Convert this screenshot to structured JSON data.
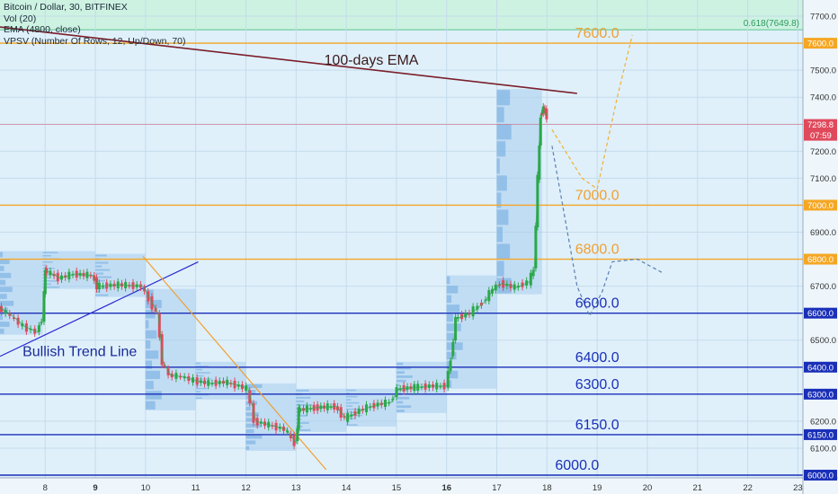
{
  "header": {
    "symbol": "Bitcoin / Dollar, 30, BITFINEX",
    "vol": "Vol (20)",
    "ema": "EMA (4800, close)",
    "vpsv": "VPSV (Number Of Rows, 12, Up/Down, 70)"
  },
  "colors": {
    "background": "#dff0fb",
    "fib_zone": "#c8f2dc",
    "orange_level": "#f5a623",
    "blue_level": "#1a2fb8",
    "ema": "#7b1f2a",
    "trend_bull": "#2a2ad0",
    "trend_bear": "#f0a030",
    "candle_up": "#2ba84a",
    "candle_down": "#e0495b",
    "price_tag": "#e0495b"
  },
  "chart_data": {
    "type": "candlestick",
    "title": "Bitcoin / Dollar, 30, BITFINEX",
    "ylim": [
      5990,
      7760
    ],
    "xlim": [
      7.1,
      23.1
    ],
    "y_ticks": [
      6000,
      6100,
      6200,
      6300,
      6400,
      6500,
      6600,
      6700,
      6800,
      6900,
      7000,
      7100,
      7200,
      7300,
      7400,
      7500,
      7600,
      7700
    ],
    "x_ticks": [
      "8",
      "9",
      "10",
      "11",
      "12",
      "13",
      "14",
      "15",
      "16",
      "17",
      "18",
      "19",
      "20",
      "21",
      "22",
      "23"
    ],
    "x_tick_values": [
      8,
      9,
      10,
      11,
      12,
      13,
      14,
      15,
      16,
      17,
      18,
      19,
      20,
      21,
      22,
      23
    ],
    "bold_ticks": [
      "9",
      "16"
    ],
    "grid": true,
    "price_path": [
      [
        7.1,
        6620
      ],
      [
        7.35,
        6590
      ],
      [
        7.6,
        6550
      ],
      [
        7.85,
        6530
      ],
      [
        7.95,
        6580
      ],
      [
        8.0,
        6760
      ],
      [
        8.3,
        6730
      ],
      [
        8.6,
        6745
      ],
      [
        8.95,
        6740
      ],
      [
        9.05,
        6700
      ],
      [
        9.5,
        6705
      ],
      [
        9.95,
        6700
      ],
      [
        10.1,
        6650
      ],
      [
        10.25,
        6600
      ],
      [
        10.35,
        6420
      ],
      [
        10.5,
        6370
      ],
      [
        10.75,
        6365
      ],
      [
        11.0,
        6350
      ],
      [
        11.3,
        6340
      ],
      [
        11.6,
        6345
      ],
      [
        11.9,
        6330
      ],
      [
        12.05,
        6320
      ],
      [
        12.2,
        6200
      ],
      [
        12.5,
        6185
      ],
      [
        12.8,
        6170
      ],
      [
        13.0,
        6120
      ],
      [
        13.05,
        6240
      ],
      [
        13.4,
        6250
      ],
      [
        13.8,
        6255
      ],
      [
        14.0,
        6210
      ],
      [
        14.3,
        6240
      ],
      [
        14.6,
        6260
      ],
      [
        14.9,
        6270
      ],
      [
        15.05,
        6320
      ],
      [
        15.4,
        6325
      ],
      [
        15.7,
        6330
      ],
      [
        16.0,
        6330
      ],
      [
        16.1,
        6430
      ],
      [
        16.2,
        6580
      ],
      [
        16.5,
        6600
      ],
      [
        16.75,
        6640
      ],
      [
        16.95,
        6690
      ],
      [
        17.1,
        6710
      ],
      [
        17.4,
        6695
      ],
      [
        17.65,
        6715
      ],
      [
        17.75,
        6760
      ],
      [
        17.82,
        7100
      ],
      [
        17.87,
        7330
      ],
      [
        17.93,
        7360
      ],
      [
        18.0,
        7330
      ]
    ],
    "current_price": 7298.8,
    "current_price_label": "7298.8",
    "countdown_label": "07:59",
    "fib_label": "0.618(7649.8)",
    "fib_level": 7649.8,
    "levels": [
      {
        "value": 7600,
        "label": "7600.0",
        "tag": "7600.0",
        "color": "orange",
        "label_x": 19.0
      },
      {
        "value": 7000,
        "label": "7000.0",
        "tag": "7000.0",
        "color": "orange",
        "label_x": 19.0
      },
      {
        "value": 6800,
        "label": "6800.0",
        "tag": "6800.0",
        "color": "orange",
        "label_x": 19.0
      },
      {
        "value": 6600,
        "label": "6600.0",
        "tag": "6600.0",
        "color": "blue",
        "label_x": 19.0
      },
      {
        "value": 6400,
        "label": "6400.0",
        "tag": "6400.0",
        "color": "blue",
        "label_x": 19.0
      },
      {
        "value": 6300,
        "label": "6300.0",
        "tag": "6300.0",
        "color": "blue",
        "label_x": 19.0
      },
      {
        "value": 6150,
        "label": "6150.0",
        "tag": "6150.0",
        "color": "blue",
        "label_x": 19.0
      },
      {
        "value": 6000,
        "label": "6000.0",
        "tag": "6000.0",
        "color": "blue",
        "label_x": 18.6
      }
    ],
    "ema_line": {
      "label": "100-days EMA",
      "points": [
        [
          7.1,
          7660
        ],
        [
          18.6,
          7414
        ]
      ],
      "label_at": [
        14.5,
        7520
      ]
    },
    "trend_lines": [
      {
        "label": "Bullish Trend Line",
        "points": [
          [
            7.1,
            6440
          ],
          [
            11.05,
            6790
          ]
        ],
        "label_at": [
          7.55,
          6440
        ]
      },
      {
        "label": "",
        "points": [
          [
            9.95,
            6810
          ],
          [
            13.6,
            6020
          ]
        ]
      }
    ],
    "volume_profiles": [
      {
        "x0": 7.1,
        "x1": 7.95,
        "y0": 6520,
        "y1": 6830
      },
      {
        "x0": 7.95,
        "x1": 9.0,
        "y0": 6690,
        "y1": 6830
      },
      {
        "x0": 9.0,
        "x1": 10.0,
        "y0": 6660,
        "y1": 6820
      },
      {
        "x0": 10.0,
        "x1": 11.0,
        "y0": 6240,
        "y1": 6690
      },
      {
        "x0": 11.0,
        "x1": 12.0,
        "y0": 6280,
        "y1": 6420
      },
      {
        "x0": 12.0,
        "x1": 13.0,
        "y0": 6090,
        "y1": 6340
      },
      {
        "x0": 13.0,
        "x1": 14.0,
        "y0": 6160,
        "y1": 6320
      },
      {
        "x0": 14.0,
        "x1": 15.0,
        "y0": 6180,
        "y1": 6320
      },
      {
        "x0": 15.0,
        "x1": 16.0,
        "y0": 6230,
        "y1": 6420
      },
      {
        "x0": 16.0,
        "x1": 17.0,
        "y0": 6320,
        "y1": 6740
      },
      {
        "x0": 17.0,
        "x1": 17.9,
        "y0": 6670,
        "y1": 7430
      }
    ],
    "projections": [
      {
        "points": [
          [
            18.1,
            7280
          ],
          [
            18.7,
            7100
          ],
          [
            19.0,
            7060
          ],
          [
            19.4,
            7400
          ],
          [
            19.7,
            7630
          ]
        ],
        "color": "orange"
      },
      {
        "points": [
          [
            18.1,
            7220
          ],
          [
            18.35,
            6960
          ],
          [
            18.6,
            6700
          ],
          [
            18.85,
            6590
          ],
          [
            19.1,
            6680
          ],
          [
            19.3,
            6790
          ],
          [
            19.8,
            6800
          ],
          [
            20.3,
            6750
          ]
        ],
        "color": "blue"
      }
    ]
  }
}
